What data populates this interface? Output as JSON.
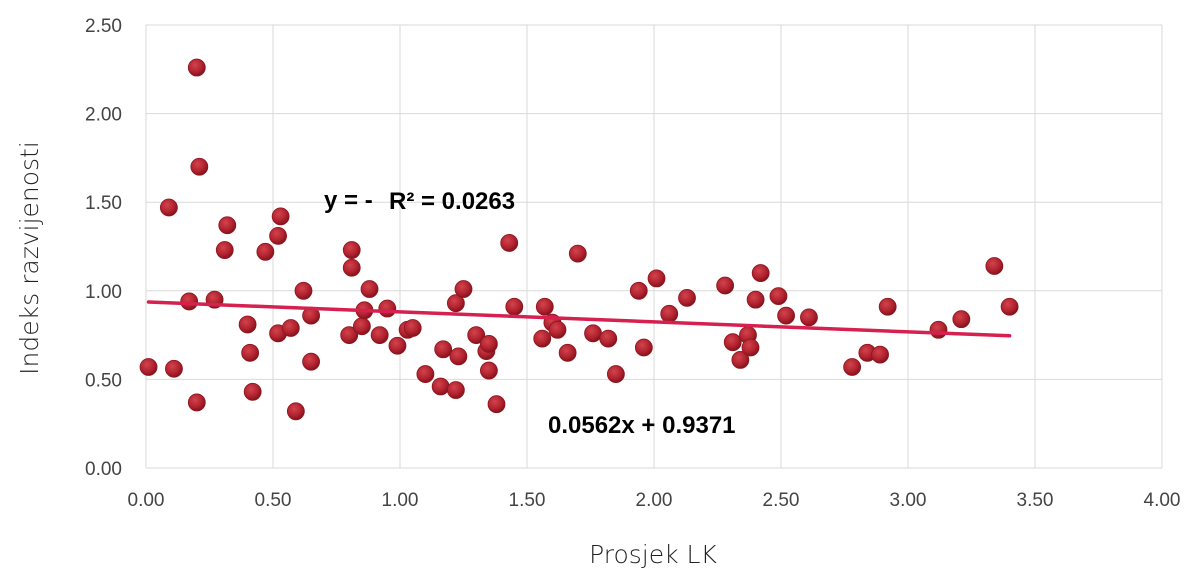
{
  "chart_data": {
    "type": "scatter",
    "title": "",
    "xlabel": "Prosjek LK",
    "ylabel": "Indeks razvijenosti",
    "xlim": [
      0,
      4
    ],
    "ylim": [
      0,
      2.5
    ],
    "x_ticks": [
      "0.00",
      "0.50",
      "1.00",
      "1.50",
      "2.00",
      "2.50",
      "3.00",
      "3.50",
      "4.00"
    ],
    "y_ticks": [
      "0.00",
      "0.50",
      "1.00",
      "1.50",
      "2.00",
      "2.50"
    ],
    "grid": true,
    "marker_color": "#b0222e",
    "trendline_color": "#d6204f",
    "trendline": {
      "slope": -0.0562,
      "intercept": 0.9371,
      "x_range": [
        0.01,
        3.4
      ]
    },
    "annotations": {
      "eq_prefix": "y = -",
      "r2": "R² = 0.0263",
      "eq_rest": "0.0562x + 0.9371"
    },
    "points": [
      [
        0.01,
        0.57
      ],
      [
        0.09,
        1.47
      ],
      [
        0.11,
        0.56
      ],
      [
        0.17,
        0.94
      ],
      [
        0.2,
        2.26
      ],
      [
        0.2,
        0.37
      ],
      [
        0.21,
        1.7
      ],
      [
        0.27,
        0.95
      ],
      [
        0.31,
        1.23
      ],
      [
        0.32,
        1.37
      ],
      [
        0.4,
        0.81
      ],
      [
        0.41,
        0.65
      ],
      [
        0.42,
        0.43
      ],
      [
        0.47,
        1.22
      ],
      [
        0.52,
        0.76
      ],
      [
        0.52,
        1.31
      ],
      [
        0.53,
        1.42
      ],
      [
        0.57,
        0.79
      ],
      [
        0.59,
        0.32
      ],
      [
        0.62,
        1.0
      ],
      [
        0.65,
        0.6
      ],
      [
        0.65,
        0.86
      ],
      [
        0.8,
        0.75
      ],
      [
        0.81,
        1.23
      ],
      [
        0.81,
        1.13
      ],
      [
        0.85,
        0.8
      ],
      [
        0.86,
        0.89
      ],
      [
        0.88,
        1.01
      ],
      [
        0.92,
        0.75
      ],
      [
        0.95,
        0.9
      ],
      [
        0.99,
        0.69
      ],
      [
        1.03,
        0.78
      ],
      [
        1.05,
        0.79
      ],
      [
        1.1,
        0.53
      ],
      [
        1.16,
        0.46
      ],
      [
        1.17,
        0.67
      ],
      [
        1.22,
        0.93
      ],
      [
        1.22,
        0.44
      ],
      [
        1.23,
        0.63
      ],
      [
        1.25,
        1.01
      ],
      [
        1.3,
        0.75
      ],
      [
        1.34,
        0.66
      ],
      [
        1.35,
        0.55
      ],
      [
        1.35,
        0.7
      ],
      [
        1.38,
        0.36
      ],
      [
        1.43,
        1.27
      ],
      [
        1.45,
        0.91
      ],
      [
        1.56,
        0.73
      ],
      [
        1.57,
        0.91
      ],
      [
        1.6,
        0.82
      ],
      [
        1.62,
        0.78
      ],
      [
        1.66,
        0.65
      ],
      [
        1.7,
        1.21
      ],
      [
        1.76,
        0.76
      ],
      [
        1.82,
        0.73
      ],
      [
        1.85,
        0.53
      ],
      [
        1.94,
        1.0
      ],
      [
        1.96,
        0.68
      ],
      [
        2.01,
        1.07
      ],
      [
        2.06,
        0.87
      ],
      [
        2.13,
        0.96
      ],
      [
        2.28,
        1.03
      ],
      [
        2.31,
        0.71
      ],
      [
        2.34,
        0.61
      ],
      [
        2.37,
        0.75
      ],
      [
        2.38,
        0.68
      ],
      [
        2.4,
        0.95
      ],
      [
        2.42,
        1.1
      ],
      [
        2.49,
        0.97
      ],
      [
        2.52,
        0.86
      ],
      [
        2.61,
        0.85
      ],
      [
        2.78,
        0.57
      ],
      [
        2.84,
        0.65
      ],
      [
        2.89,
        0.64
      ],
      [
        2.92,
        0.91
      ],
      [
        3.12,
        0.78
      ],
      [
        3.21,
        0.84
      ],
      [
        3.34,
        1.14
      ],
      [
        3.4,
        0.91
      ]
    ]
  }
}
